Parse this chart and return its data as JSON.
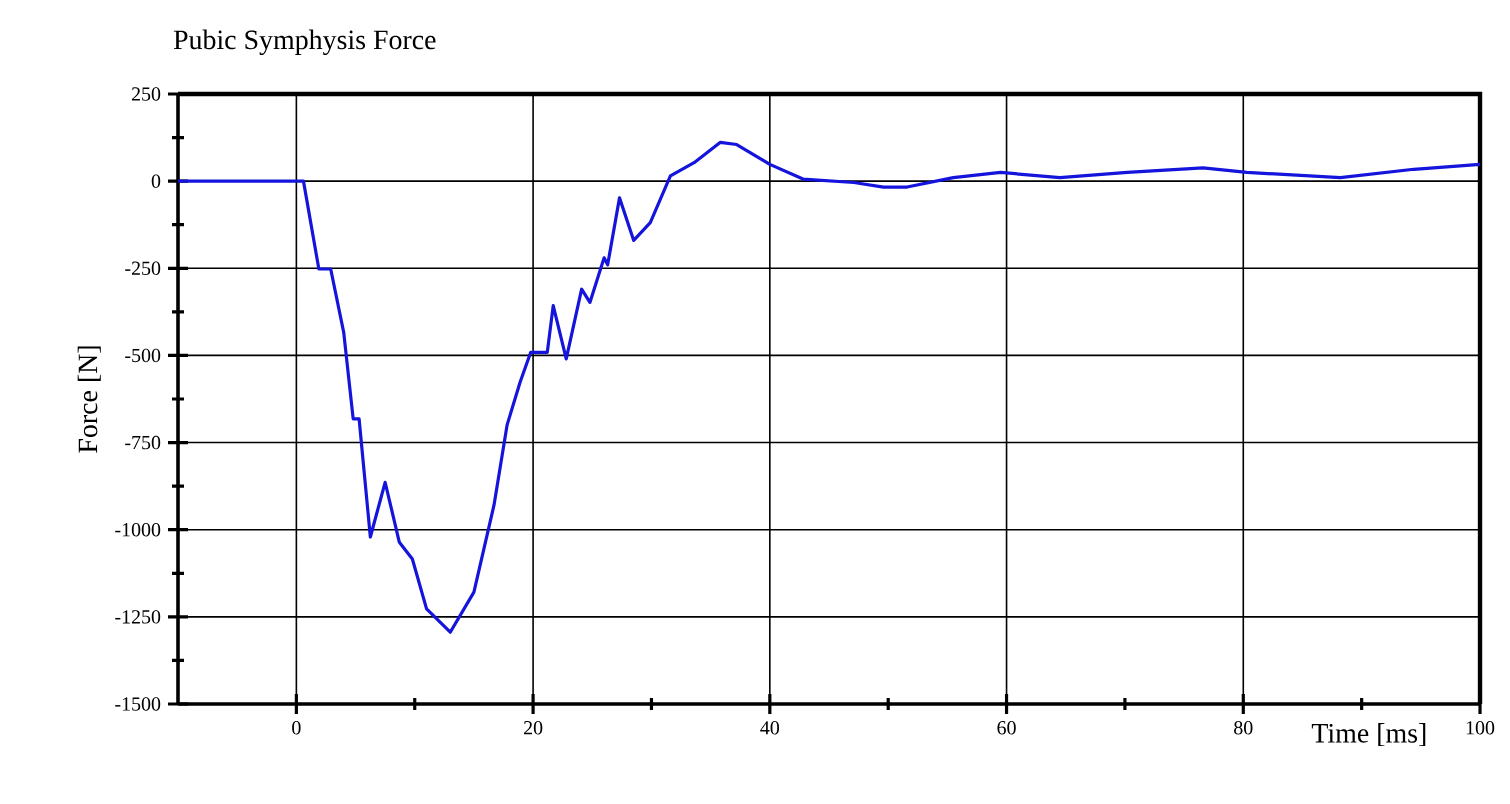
{
  "chart_data": {
    "type": "line",
    "title": "Pubic Symphysis Force",
    "xlabel": "Time [ms]",
    "ylabel": "Force [N]",
    "series": [
      {
        "color": "#1414dc",
        "x": [
          -10,
          0.6,
          1.9,
          2.9,
          4.0,
          4.8,
          5.3,
          6.25,
          7.5,
          8.7,
          9.8,
          11.0,
          13.0,
          15.0,
          16.7,
          17.8,
          18.9,
          19.8,
          21.2,
          21.7,
          22.8,
          24.1,
          24.8,
          26.0,
          26.3,
          27.3,
          28.5,
          29.9,
          31.6,
          33.6,
          35.8,
          37.2,
          40.0,
          42.8,
          47.1,
          49.6,
          51.6,
          55.5,
          59.5,
          64.5,
          70.2,
          76.6,
          80.3,
          88.2,
          94.4,
          100
        ],
        "values": [
          0,
          0,
          -252,
          -252,
          -434,
          -682,
          -682,
          -1021,
          -864,
          -1036,
          -1084,
          -1227,
          -1294,
          -1179,
          -929,
          -700,
          -577,
          -491,
          -491,
          -357,
          -510,
          -310,
          -348,
          -220,
          -240,
          -48,
          -170,
          -119,
          15,
          53,
          111,
          105,
          48,
          6,
          -4,
          -17,
          -17,
          10,
          25,
          10,
          25,
          38,
          25,
          10,
          34,
          48
        ]
      }
    ],
    "xlim": [
      -10,
      100
    ],
    "ylim": [
      -1500,
      250
    ],
    "xticks": [
      0,
      20,
      40,
      60,
      80,
      100
    ],
    "yticks": [
      -1500,
      -1250,
      -1000,
      -750,
      -500,
      -250,
      0,
      250
    ],
    "grid": true,
    "line_style": "solid",
    "marker": "none"
  }
}
